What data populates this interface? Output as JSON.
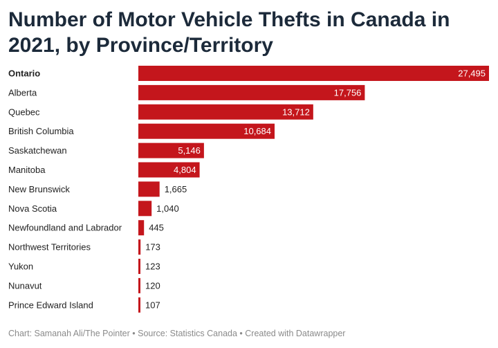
{
  "title": "Number of Motor Vehicle Thefts in Canada in 2021, by Province/Territory",
  "footer": "Chart: Samanah Ali/The Pointer • Source: Statistics Canada • Created with Datawrapper",
  "colors": {
    "bar": "#c4161c",
    "label_inside": "#ffffff",
    "label_outside": "#222222",
    "category": "#222222"
  },
  "chart_data": {
    "type": "bar",
    "orientation": "horizontal",
    "title": "Number of Motor Vehicle Thefts in Canada in 2021, by Province/Territory",
    "highlighted_category": "Ontario",
    "categories": [
      "Ontario",
      "Alberta",
      "Quebec",
      "British Columbia",
      "Saskatchewan",
      "Manitoba",
      "New Brunswick",
      "Nova Scotia",
      "Newfoundland and Labrador",
      "Northwest Territories",
      "Yukon",
      "Nunavut",
      "Prince Edward Island"
    ],
    "values": [
      27495,
      17756,
      13712,
      10684,
      5146,
      4804,
      1665,
      1040,
      445,
      173,
      123,
      120,
      107
    ],
    "value_labels": [
      "27,495",
      "17,756",
      "13,712",
      "10,684",
      "5,146",
      "4,804",
      "1,665",
      "1,040",
      "445",
      "173",
      "123",
      "120",
      "107"
    ],
    "xlim": [
      0,
      27495
    ],
    "grid": false,
    "legend": "none"
  }
}
